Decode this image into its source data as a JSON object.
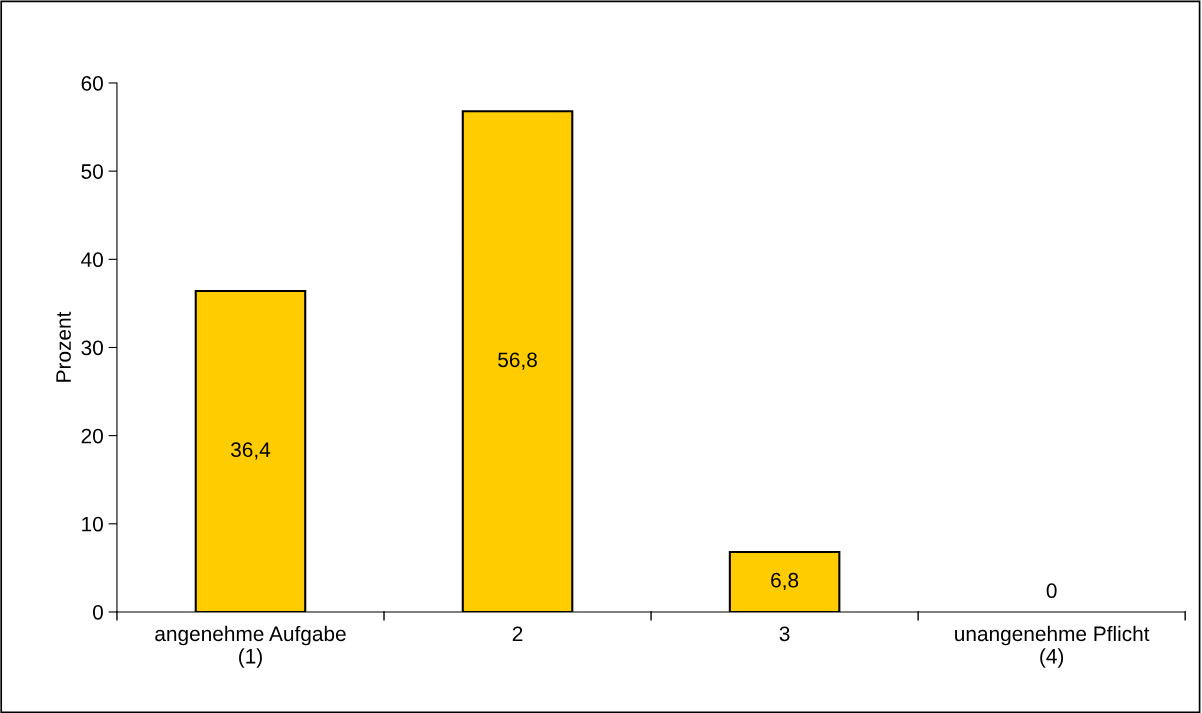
{
  "chart_data": {
    "type": "bar",
    "ylabel": "Prozent",
    "categories": [
      "angenehme Aufgabe\n(1)",
      "2",
      "3",
      "unangenehme Pflicht\n(4)"
    ],
    "values": [
      36.4,
      56.8,
      6.8,
      0
    ],
    "value_labels": [
      "36,4",
      "56,8",
      "6,8",
      "0"
    ],
    "color": "#ffcc00",
    "ylim": [
      0,
      60
    ],
    "yticks": [
      0,
      10,
      20,
      30,
      40,
      50,
      60
    ],
    "grid": false,
    "legend": false
  }
}
